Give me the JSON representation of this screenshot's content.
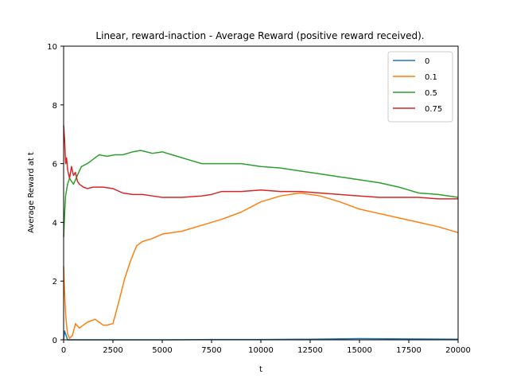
{
  "chart_data": {
    "type": "line",
    "title": "Linear, reward-inaction - Average Reward (positive reward received).",
    "xlabel": "t",
    "ylabel": "Average Reward at t",
    "xlim": [
      0,
      20000
    ],
    "ylim": [
      0,
      10
    ],
    "xticks": [
      "0",
      "2500",
      "5000",
      "7500",
      "10000",
      "12500",
      "15000",
      "17500",
      "20000"
    ],
    "yticks": [
      "0",
      "2",
      "4",
      "6",
      "8",
      "10"
    ],
    "grid": false,
    "legend_position": "top-right",
    "series": [
      {
        "name": "0",
        "color": "#1f77b4",
        "points": [
          [
            0,
            0.0
          ],
          [
            50,
            0.3
          ],
          [
            100,
            0.2
          ],
          [
            200,
            0.0
          ],
          [
            2500,
            0.0
          ],
          [
            5000,
            0.0
          ],
          [
            7500,
            0.01
          ],
          [
            10000,
            0.01
          ],
          [
            12500,
            0.02
          ],
          [
            15000,
            0.04
          ],
          [
            17500,
            0.03
          ],
          [
            20000,
            0.02
          ]
        ]
      },
      {
        "name": "0.1",
        "color": "#ff7f0e",
        "points": [
          [
            0,
            2.5
          ],
          [
            50,
            1.6
          ],
          [
            100,
            0.9
          ],
          [
            150,
            0.5
          ],
          [
            200,
            0.2
          ],
          [
            300,
            0.05
          ],
          [
            450,
            0.15
          ],
          [
            600,
            0.55
          ],
          [
            800,
            0.4
          ],
          [
            1000,
            0.5
          ],
          [
            1200,
            0.6
          ],
          [
            1400,
            0.65
          ],
          [
            1600,
            0.7
          ],
          [
            1800,
            0.6
          ],
          [
            2000,
            0.5
          ],
          [
            2200,
            0.5
          ],
          [
            2500,
            0.55
          ],
          [
            2800,
            1.3
          ],
          [
            3100,
            2.1
          ],
          [
            3400,
            2.7
          ],
          [
            3700,
            3.2
          ],
          [
            4000,
            3.35
          ],
          [
            4500,
            3.45
          ],
          [
            5000,
            3.6
          ],
          [
            6000,
            3.7
          ],
          [
            7000,
            3.9
          ],
          [
            8000,
            4.1
          ],
          [
            9000,
            4.35
          ],
          [
            10000,
            4.7
          ],
          [
            11000,
            4.9
          ],
          [
            12000,
            5.0
          ],
          [
            13000,
            4.9
          ],
          [
            14000,
            4.7
          ],
          [
            15000,
            4.45
          ],
          [
            16000,
            4.3
          ],
          [
            17000,
            4.15
          ],
          [
            18000,
            4.0
          ],
          [
            19000,
            3.85
          ],
          [
            20000,
            3.65
          ]
        ]
      },
      {
        "name": "0.5",
        "color": "#2ca02c",
        "points": [
          [
            0,
            3.5
          ],
          [
            50,
            4.3
          ],
          [
            100,
            4.9
          ],
          [
            200,
            5.3
          ],
          [
            300,
            5.5
          ],
          [
            500,
            5.3
          ],
          [
            700,
            5.6
          ],
          [
            900,
            5.9
          ],
          [
            1200,
            6.0
          ],
          [
            1500,
            6.15
          ],
          [
            1800,
            6.3
          ],
          [
            2200,
            6.25
          ],
          [
            2600,
            6.3
          ],
          [
            3000,
            6.3
          ],
          [
            3500,
            6.4
          ],
          [
            3900,
            6.45
          ],
          [
            4500,
            6.35
          ],
          [
            5000,
            6.4
          ],
          [
            5500,
            6.3
          ],
          [
            6000,
            6.2
          ],
          [
            6500,
            6.1
          ],
          [
            7000,
            6.0
          ],
          [
            7500,
            6.0
          ],
          [
            8000,
            6.0
          ],
          [
            8500,
            6.0
          ],
          [
            9000,
            6.0
          ],
          [
            10000,
            5.9
          ],
          [
            11000,
            5.85
          ],
          [
            12000,
            5.75
          ],
          [
            13000,
            5.65
          ],
          [
            14000,
            5.55
          ],
          [
            15000,
            5.45
          ],
          [
            16000,
            5.35
          ],
          [
            17000,
            5.2
          ],
          [
            18000,
            5.0
          ],
          [
            19000,
            4.95
          ],
          [
            20000,
            4.85
          ]
        ]
      },
      {
        "name": "0.75",
        "color": "#d62728",
        "points": [
          [
            0,
            7.3
          ],
          [
            50,
            6.8
          ],
          [
            100,
            6.0
          ],
          [
            150,
            6.2
          ],
          [
            200,
            5.8
          ],
          [
            300,
            5.5
          ],
          [
            400,
            5.9
          ],
          [
            500,
            5.6
          ],
          [
            600,
            5.7
          ],
          [
            700,
            5.4
          ],
          [
            800,
            5.3
          ],
          [
            1000,
            5.2
          ],
          [
            1200,
            5.15
          ],
          [
            1500,
            5.2
          ],
          [
            2000,
            5.2
          ],
          [
            2500,
            5.15
          ],
          [
            3000,
            5.0
          ],
          [
            3500,
            4.95
          ],
          [
            4000,
            4.95
          ],
          [
            4500,
            4.9
          ],
          [
            5000,
            4.85
          ],
          [
            6000,
            4.85
          ],
          [
            7000,
            4.9
          ],
          [
            7500,
            4.95
          ],
          [
            8000,
            5.05
          ],
          [
            9000,
            5.05
          ],
          [
            10000,
            5.1
          ],
          [
            11000,
            5.05
          ],
          [
            12000,
            5.05
          ],
          [
            13000,
            5.0
          ],
          [
            14000,
            4.95
          ],
          [
            15000,
            4.9
          ],
          [
            16000,
            4.85
          ],
          [
            17000,
            4.85
          ],
          [
            18000,
            4.85
          ],
          [
            19000,
            4.8
          ],
          [
            20000,
            4.8
          ]
        ]
      }
    ]
  }
}
